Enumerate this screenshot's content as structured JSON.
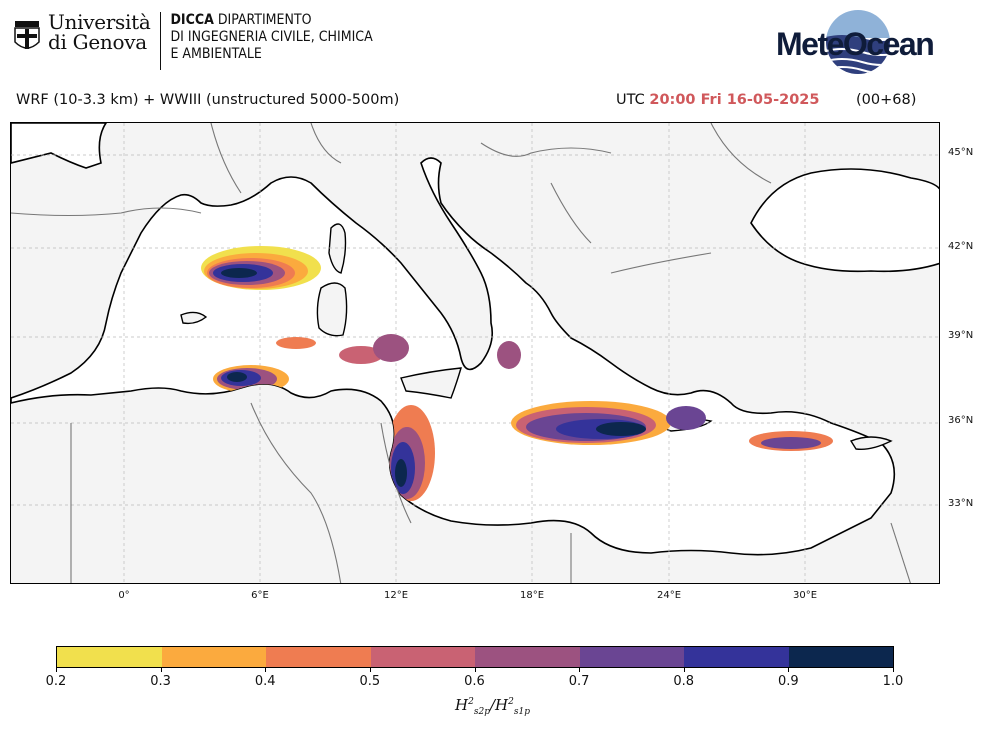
{
  "header": {
    "university_line1": "Università",
    "university_line2": "di Genova",
    "dept_bold": "DICCA",
    "dept_line1": "DIPARTIMENTO",
    "dept_line2": "DI INGEGNERIA CIVILE, CHIMICA",
    "dept_line3": "E AMBIENTALE",
    "brand": "MeteOcean"
  },
  "subheader": {
    "model": "WRF (10-3.3 km) + WWIII (unstructured 5000-500m)",
    "utc_label": "UTC",
    "time": "20:00 Fri 16-05-2025",
    "lead": "(00+68)"
  },
  "map": {
    "lat_labels": [
      "45°N",
      "42°N",
      "39°N",
      "36°N",
      "33°N"
    ],
    "lon_labels": [
      "0°",
      "6°E",
      "12°E",
      "18°E",
      "24°E",
      "30°E"
    ]
  },
  "colorbar": {
    "ticks": [
      "0.2",
      "0.3",
      "0.4",
      "0.5",
      "0.6",
      "0.7",
      "0.8",
      "0.9",
      "1.0"
    ],
    "colors": [
      "#f1e04d",
      "#fbaa3e",
      "#ef7c51",
      "#c96273",
      "#9c5280",
      "#6a4593",
      "#34339a",
      "#0c274e"
    ],
    "label": "H²s2p/H²s1p"
  }
}
